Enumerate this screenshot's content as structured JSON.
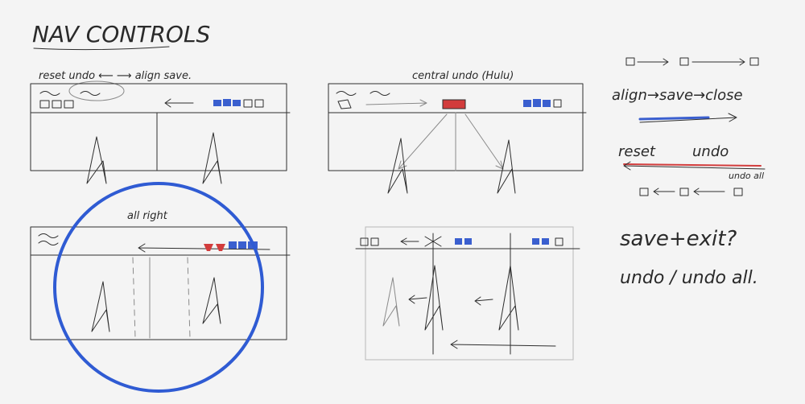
{
  "title": "NAV CONTROLS",
  "sketches": {
    "top_left": {
      "caption": "reset undo ⟵ ⟶ align save."
    },
    "top_right": {
      "caption": "central undo (Hulu)"
    },
    "bottom_left": {
      "caption": "all right"
    }
  },
  "legend": {
    "flow_forward": "align→save→close",
    "flow_back_start": "reset",
    "flow_back_end": "undo",
    "undo_all": "undo all"
  },
  "notes": {
    "line1": "save+exit?",
    "line2": "undo / undo all."
  },
  "colors": {
    "highlight_circle": "#2f5bd3",
    "blue_marker": "#3a5fcf",
    "red_marker": "#d23c3c"
  }
}
